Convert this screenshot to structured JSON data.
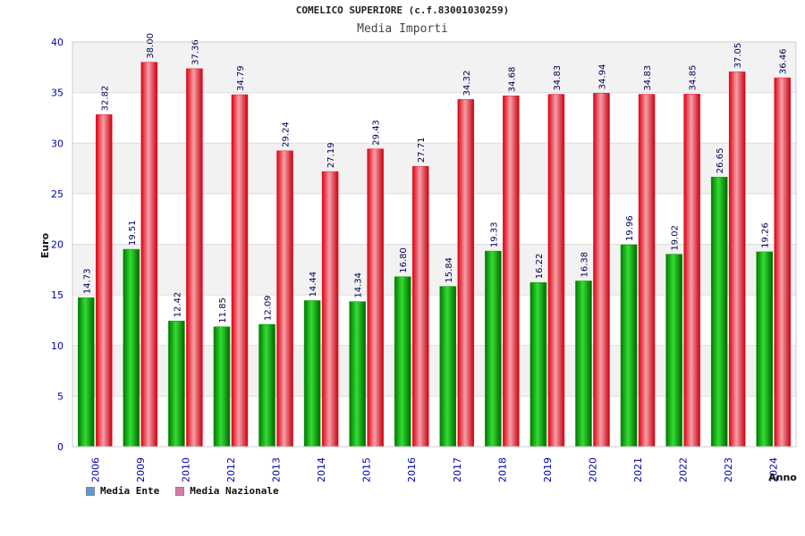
{
  "chart_data": {
    "type": "bar",
    "title": "COMELICO SUPERIORE (c.f.83001030259)",
    "subtitle": "Media Importi",
    "xlabel": "Anno",
    "ylabel": "Euro",
    "ylim": [
      0,
      40
    ],
    "yticks": [
      "0",
      "5",
      "10",
      "15",
      "20",
      "25",
      "30",
      "35",
      "40"
    ],
    "categories": [
      "2006",
      "2009",
      "2010",
      "2012",
      "2013",
      "2014",
      "2015",
      "2016",
      "2017",
      "2018",
      "2019",
      "2020",
      "2021",
      "2022",
      "2023",
      "2024"
    ],
    "series": [
      {
        "name": "Media Ente",
        "values": [
          14.73,
          19.51,
          12.42,
          11.85,
          12.09,
          14.44,
          14.34,
          16.8,
          15.84,
          19.33,
          16.22,
          16.38,
          19.96,
          19.02,
          26.65,
          19.26
        ],
        "labels": [
          "14.73",
          "19.51",
          "12.42",
          "11.85",
          "12.09",
          "14.44",
          "14.34",
          "16.80",
          "15.84",
          "19.33",
          "16.22",
          "16.38",
          "19.96",
          "19.02",
          "26.65",
          "19.26"
        ]
      },
      {
        "name": "Media Nazionale",
        "values": [
          32.82,
          38.0,
          37.36,
          34.79,
          29.24,
          27.19,
          29.43,
          27.71,
          34.32,
          34.68,
          34.83,
          34.94,
          34.83,
          34.85,
          37.05,
          36.46
        ],
        "labels": [
          "32.82",
          "38.00",
          "37.36",
          "34.79",
          "29.24",
          "27.19",
          "29.43",
          "27.71",
          "34.32",
          "34.68",
          "34.83",
          "34.94",
          "34.83",
          "34.85",
          "37.05",
          "36.46"
        ]
      }
    ],
    "grid": true,
    "legend_position": "bottom-left"
  },
  "legend": {
    "items": [
      {
        "label": "Media Ente",
        "color": "#5b9bd5"
      },
      {
        "label": "Media Nazionale",
        "color": "#d97aa8"
      }
    ]
  },
  "colors": {
    "ente_bar": "#00b000",
    "nazionale_bar": "#ee1122",
    "axis_labels": "#0000aa",
    "grid_band": "#f2f2f2"
  }
}
